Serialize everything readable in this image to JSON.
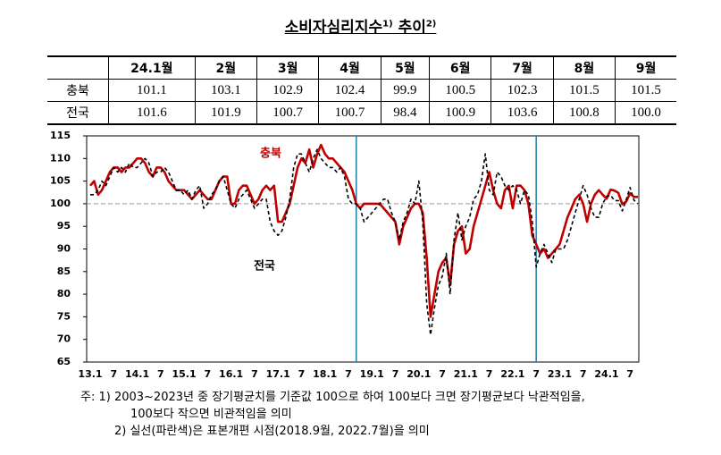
{
  "title": {
    "main": "소비자심리지수",
    "sup1": "1)",
    "sub": "추이",
    "sup2": "2)"
  },
  "table": {
    "header": [
      "24.1월",
      "2월",
      "3월",
      "4월",
      "5월",
      "6월",
      "7월",
      "8월",
      "9월"
    ],
    "rows": [
      {
        "label": "충북",
        "cells": [
          "101.1",
          "103.1",
          "102.9",
          "102.4",
          "99.9",
          "100.5",
          "102.3",
          "101.5",
          "101.5"
        ]
      },
      {
        "label": "전국",
        "cells": [
          "101.6",
          "101.9",
          "100.7",
          "100.7",
          "98.4",
          "100.9",
          "103.6",
          "100.8",
          "100.0"
        ]
      }
    ]
  },
  "chart_data": {
    "type": "line",
    "categories": [
      "13.1",
      null,
      null,
      null,
      null,
      null,
      "7",
      null,
      null,
      null,
      null,
      null,
      "14.1",
      null,
      null,
      null,
      null,
      null,
      "7",
      null,
      null,
      null,
      null,
      null,
      "15.1",
      null,
      null,
      null,
      null,
      null,
      "7",
      null,
      null,
      null,
      null,
      null,
      "16.1",
      null,
      null,
      null,
      null,
      null,
      "7",
      null,
      null,
      null,
      null,
      null,
      "17.1",
      null,
      null,
      null,
      null,
      null,
      "7",
      null,
      null,
      null,
      null,
      null,
      "18.1",
      null,
      null,
      null,
      null,
      null,
      "7",
      null,
      null,
      null,
      null,
      null,
      "19.1",
      null,
      null,
      null,
      null,
      null,
      "7",
      null,
      null,
      null,
      null,
      null,
      "20.1",
      null,
      null,
      null,
      null,
      null,
      "7",
      null,
      null,
      null,
      null,
      null,
      "21.1",
      null,
      null,
      null,
      null,
      null,
      "7",
      null,
      null,
      null,
      null,
      null,
      "22.1",
      null,
      null,
      null,
      null,
      null,
      "7",
      null,
      null,
      null,
      null,
      null,
      "23.1",
      null,
      null,
      null,
      null,
      null,
      "7",
      null,
      null,
      null,
      null,
      null,
      "24.1",
      null,
      null,
      null,
      null,
      null,
      "7",
      null,
      null
    ],
    "series": [
      {
        "name": "충북",
        "color": "#c00000",
        "dashed": false,
        "values": [
          104,
          105,
          102,
          103,
          105,
          107,
          108,
          108,
          107,
          108,
          108,
          109,
          110,
          110,
          109,
          107,
          106,
          108,
          108,
          107,
          105,
          104,
          103,
          103,
          103,
          102,
          101,
          102,
          103,
          102,
          101,
          101,
          103,
          105,
          106,
          106,
          100,
          100,
          103,
          104,
          104,
          102,
          100,
          101,
          103,
          104,
          103,
          104,
          96,
          96,
          98,
          100,
          104,
          108,
          110,
          109,
          112,
          108,
          111,
          113,
          111,
          110,
          110,
          109,
          108,
          107,
          105,
          103,
          100,
          99,
          100,
          100,
          100,
          100,
          100,
          99,
          98,
          97,
          96,
          91,
          95,
          97,
          99,
          100,
          100,
          98,
          88,
          75,
          80,
          85,
          87,
          88,
          82,
          91,
          94,
          95,
          89,
          90,
          95,
          98,
          101,
          104,
          107,
          103,
          100,
          99,
          103,
          104,
          99,
          104,
          104,
          103,
          100,
          93,
          91,
          89,
          90,
          88,
          89,
          90,
          91,
          94,
          97,
          99,
          101,
          102,
          100,
          96,
          100,
          102,
          103,
          102,
          101.1,
          103.1,
          102.9,
          102.4,
          99.9,
          100.5,
          102.3,
          101.5,
          101.5
        ]
      },
      {
        "name": "전국",
        "color": "#000000",
        "dashed": true,
        "values": [
          102,
          102,
          103,
          105,
          104,
          106,
          108,
          107,
          108,
          107,
          109,
          108,
          108,
          109,
          110,
          109,
          106,
          107,
          107,
          108,
          107,
          105,
          103,
          103,
          102,
          103,
          101,
          103,
          104,
          99,
          100,
          102,
          103,
          105,
          106,
          103,
          100,
          99,
          101,
          102,
          103,
          101,
          99,
          100,
          101,
          101,
          96,
          94,
          93,
          94,
          97,
          101,
          108,
          111,
          111,
          109,
          107,
          110,
          112,
          110,
          109,
          108,
          108,
          107,
          108,
          106,
          101,
          100,
          100,
          99,
          96,
          97,
          98,
          99,
          100,
          101,
          101,
          98,
          96,
          92,
          96,
          98,
          101,
          100,
          105,
          96,
          78,
          71,
          77,
          82,
          84,
          89,
          80,
          92,
          98,
          92,
          95,
          97,
          101,
          102,
          105,
          111,
          103,
          102,
          107,
          106,
          104,
          103,
          104,
          103,
          100,
          103,
          102,
          96,
          86,
          89,
          91,
          89,
          87,
          90,
          90,
          90,
          92,
          95,
          98,
          101,
          104,
          102,
          99,
          97,
          97,
          100,
          101.6,
          101.9,
          100.7,
          100.7,
          98.4,
          100.9,
          103.6,
          100.8,
          100.0
        ]
      }
    ],
    "ylim": [
      65,
      115
    ],
    "yticks": [
      65,
      70,
      75,
      80,
      85,
      90,
      95,
      100,
      105,
      110,
      115
    ],
    "hline": 100,
    "vlines": [
      68,
      114
    ],
    "vline_color": "#1f7fa8"
  },
  "notes": [
    "주: 1) 2003~2023년 중 장기평균치를 기준값 100으로 하여 100보다 크면 장기평균보다 낙관적임을,",
    "100보다 작으면 비관적임을 의미",
    "2) 실선(파란색)은 표본개편 시점(2018.9월, 2022.7월)을 의미"
  ]
}
